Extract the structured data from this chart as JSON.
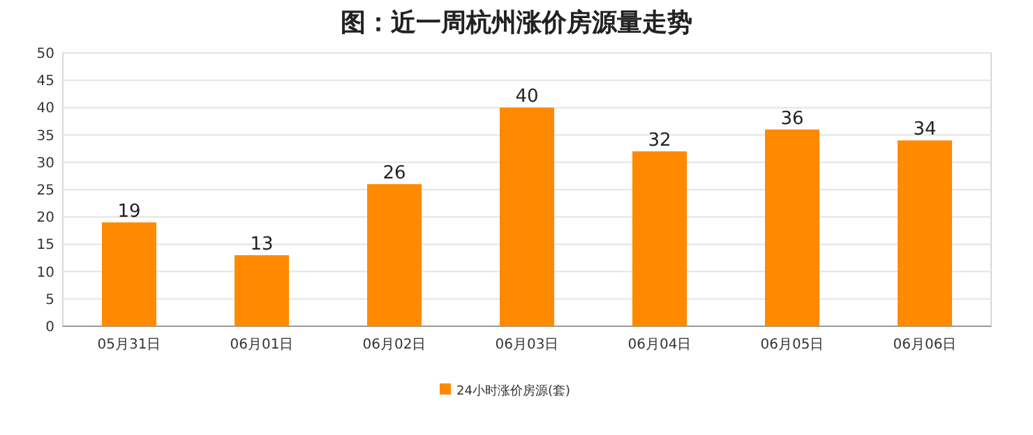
{
  "chart_data": {
    "type": "bar",
    "title": "图：近一周杭州涨价房源量走势",
    "categories": [
      "05月31日",
      "06月01日",
      "06月02日",
      "06月03日",
      "06月04日",
      "06月05日",
      "06月06日"
    ],
    "series": [
      {
        "name": "24小时涨价房源(套)",
        "color": "#ff8a00",
        "values": [
          19,
          13,
          26,
          40,
          32,
          36,
          34
        ]
      }
    ],
    "ylim": [
      0,
      50
    ],
    "yticks": [
      0,
      5,
      10,
      15,
      20,
      25,
      30,
      35,
      40,
      45,
      50
    ],
    "grid": "y",
    "legend": "bottom",
    "data_labels": true
  }
}
